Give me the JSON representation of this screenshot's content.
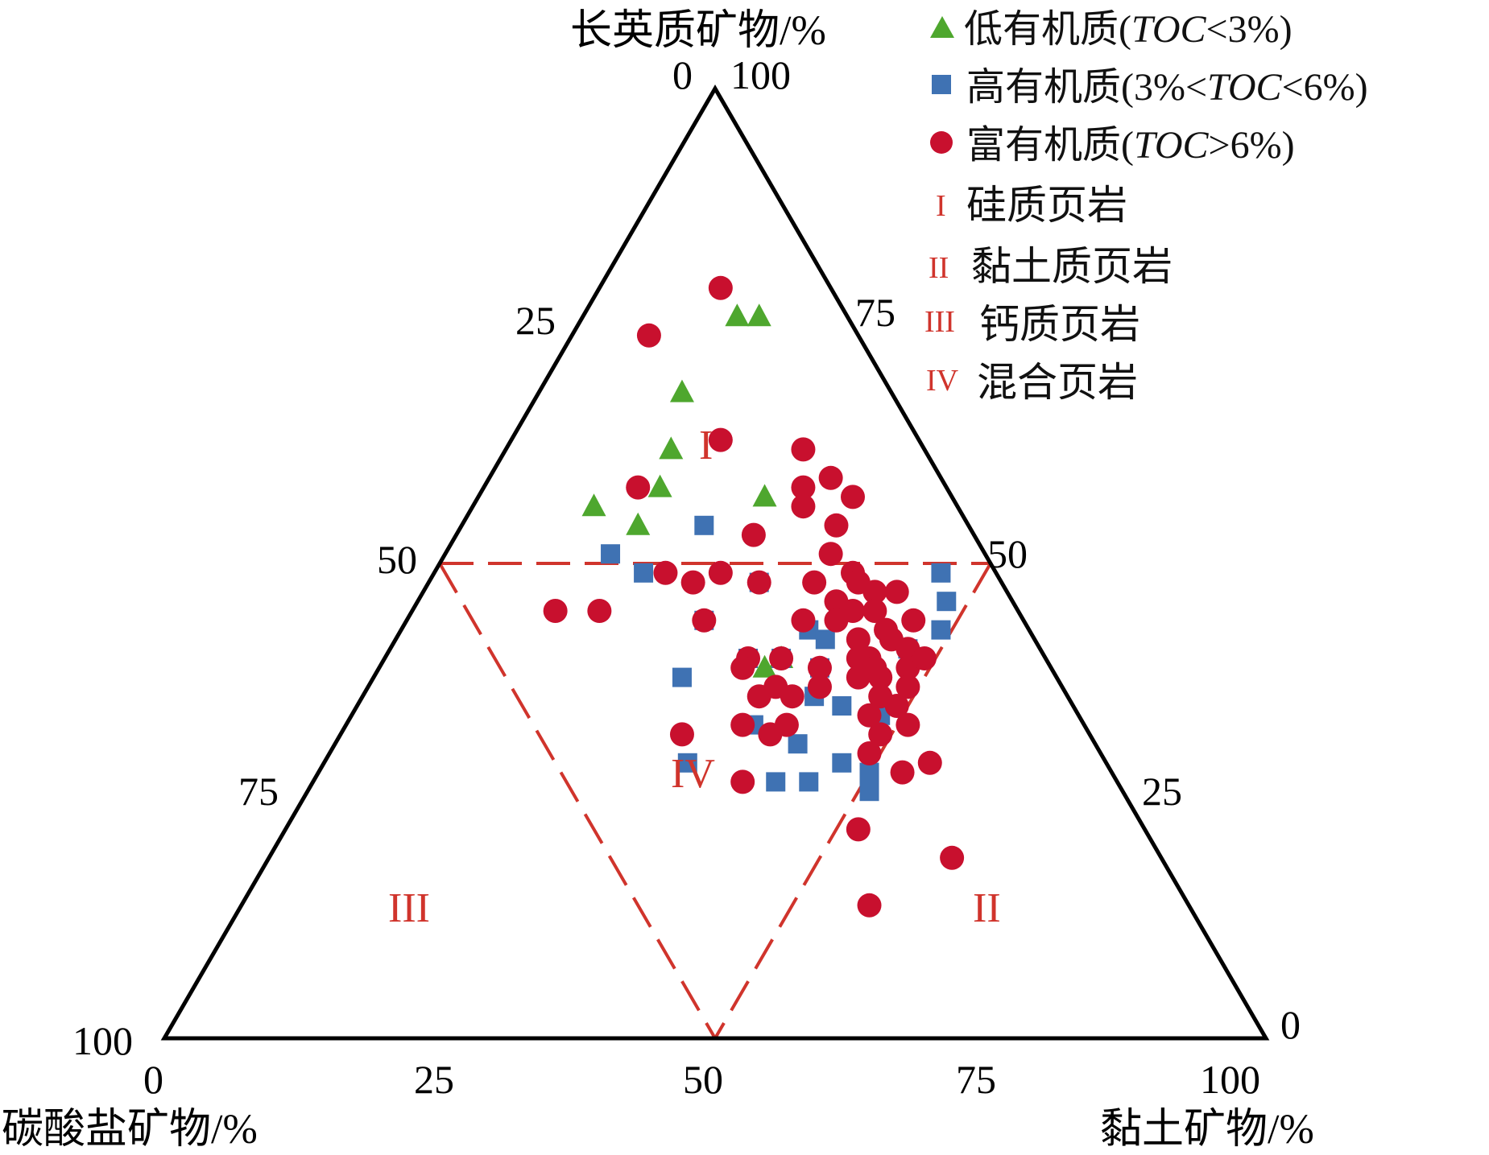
{
  "chart_data": {
    "type": "scatter",
    "subtype": "ternary",
    "axes": {
      "top": {
        "label": "长英质矿物/%",
        "ticks": [
          "0",
          "100",
          "25",
          "50",
          "75"
        ]
      },
      "left": {
        "label": "碳酸盐矿物/%",
        "ticks": [
          "100",
          "75",
          "50",
          "25",
          "0"
        ]
      },
      "right": {
        "label": "黏土矿物/%",
        "ticks": [
          "75",
          "50",
          "25",
          "0"
        ]
      },
      "bottom_ticks": [
        "0",
        "25",
        "50",
        "75",
        "100"
      ]
    },
    "zones": [
      {
        "id": "I",
        "text": "I",
        "name": "硅质页岩"
      },
      {
        "id": "II",
        "text": "II",
        "name": "黏土质页岩"
      },
      {
        "id": "III",
        "text": "III",
        "name": "钙质页岩"
      },
      {
        "id": "IV",
        "text": "IV",
        "name": "混合页岩"
      }
    ],
    "zone_boundaries": [
      {
        "from": [
          50,
          50,
          0
        ],
        "to": [
          50,
          0,
          50
        ]
      },
      {
        "from": [
          50,
          50,
          0
        ],
        "to": [
          0,
          50,
          50
        ]
      },
      {
        "from": [
          50,
          0,
          50
        ],
        "to": [
          0,
          50,
          50
        ]
      }
    ],
    "point_format": [
      "clay %",
      "felsic %"
    ],
    "series": [
      {
        "name": "低有机质(TOC<3%)",
        "name_parts": [
          "低有机质(",
          "TOC",
          "<3%)"
        ],
        "marker": "triangle",
        "color": "#4ea72e",
        "points": [
          [
            14,
            76
          ],
          [
            16,
            76
          ],
          [
            13,
            68
          ],
          [
            15,
            62
          ],
          [
            16,
            58
          ],
          [
            11,
            56
          ],
          [
            16,
            54
          ],
          [
            26,
            57
          ],
          [
            35,
            39
          ],
          [
            36,
            40
          ]
        ]
      },
      {
        "name": "高有机质(3%<TOC<6%)",
        "name_parts": [
          "高有机质(3%<",
          "TOC",
          "<6%)"
        ],
        "marker": "square",
        "color": "#3f72b3",
        "points": [
          [
            15,
            51
          ],
          [
            19,
            49
          ],
          [
            22,
            54
          ],
          [
            27,
            44
          ],
          [
            30,
            48
          ],
          [
            28,
            38
          ],
          [
            33,
            40
          ],
          [
            33,
            29
          ],
          [
            37,
            33
          ],
          [
            36,
            40
          ],
          [
            37,
            43
          ],
          [
            39,
            42
          ],
          [
            40,
            39
          ],
          [
            41,
            36
          ],
          [
            42,
            31
          ],
          [
            42,
            27
          ],
          [
            44,
            35
          ],
          [
            47,
            29
          ],
          [
            45,
            27
          ],
          [
            48,
            34
          ],
          [
            50,
            28
          ],
          [
            51,
            26
          ],
          [
            47,
            41
          ],
          [
            48,
            46
          ],
          [
            49,
            43
          ],
          [
            46,
            49
          ]
        ]
      },
      {
        "name": "富有机质(TOC>6%)",
        "name_parts": [
          "富有机质(",
          "TOC",
          ">6%)"
        ],
        "marker": "circle",
        "color": "#c8102e",
        "points": [
          [
            11,
            79
          ],
          [
            7,
            74
          ],
          [
            19,
            63
          ],
          [
            14,
            58
          ],
          [
            27,
            62
          ],
          [
            29,
            58
          ],
          [
            31,
            59
          ],
          [
            30,
            56
          ],
          [
            34,
            57
          ],
          [
            34,
            54
          ],
          [
            27,
            53
          ],
          [
            26,
            49
          ],
          [
            35,
            51
          ],
          [
            35,
            48
          ],
          [
            38,
            49
          ],
          [
            38,
            46
          ],
          [
            39,
            48
          ],
          [
            41,
            47
          ],
          [
            36,
            44
          ],
          [
            39,
            44
          ],
          [
            40,
            45
          ],
          [
            42,
            45
          ],
          [
            43,
            47
          ],
          [
            44,
            43
          ],
          [
            45,
            42
          ],
          [
            46,
            44
          ],
          [
            47,
            41
          ],
          [
            43,
            40
          ],
          [
            44,
            38
          ],
          [
            40,
            39
          ],
          [
            41,
            37
          ],
          [
            36,
            40
          ],
          [
            33,
            40
          ],
          [
            33,
            39
          ],
          [
            36,
            36
          ],
          [
            37,
            37
          ],
          [
            39,
            36
          ],
          [
            46,
            38
          ],
          [
            48,
            39
          ],
          [
            49,
            37
          ],
          [
            47,
            34
          ],
          [
            49,
            35
          ],
          [
            49,
            32
          ],
          [
            51,
            33
          ],
          [
            40,
            33
          ],
          [
            36,
            33
          ],
          [
            31,
            32
          ],
          [
            49,
            30
          ],
          [
            53,
            28
          ],
          [
            52,
            22
          ],
          [
            39,
            27
          ],
          [
            27,
            44
          ],
          [
            30,
            48
          ],
          [
            24,
            48
          ],
          [
            21,
            49
          ],
          [
            13,
            45
          ],
          [
            17,
            45
          ],
          [
            39,
            32
          ],
          [
            55,
            29
          ],
          [
            62,
            19
          ],
          [
            57,
            14
          ],
          [
            44,
            40
          ],
          [
            42,
            42
          ],
          [
            45,
            39
          ],
          [
            49,
            40
          ],
          [
            47,
            36
          ]
        ]
      }
    ]
  }
}
